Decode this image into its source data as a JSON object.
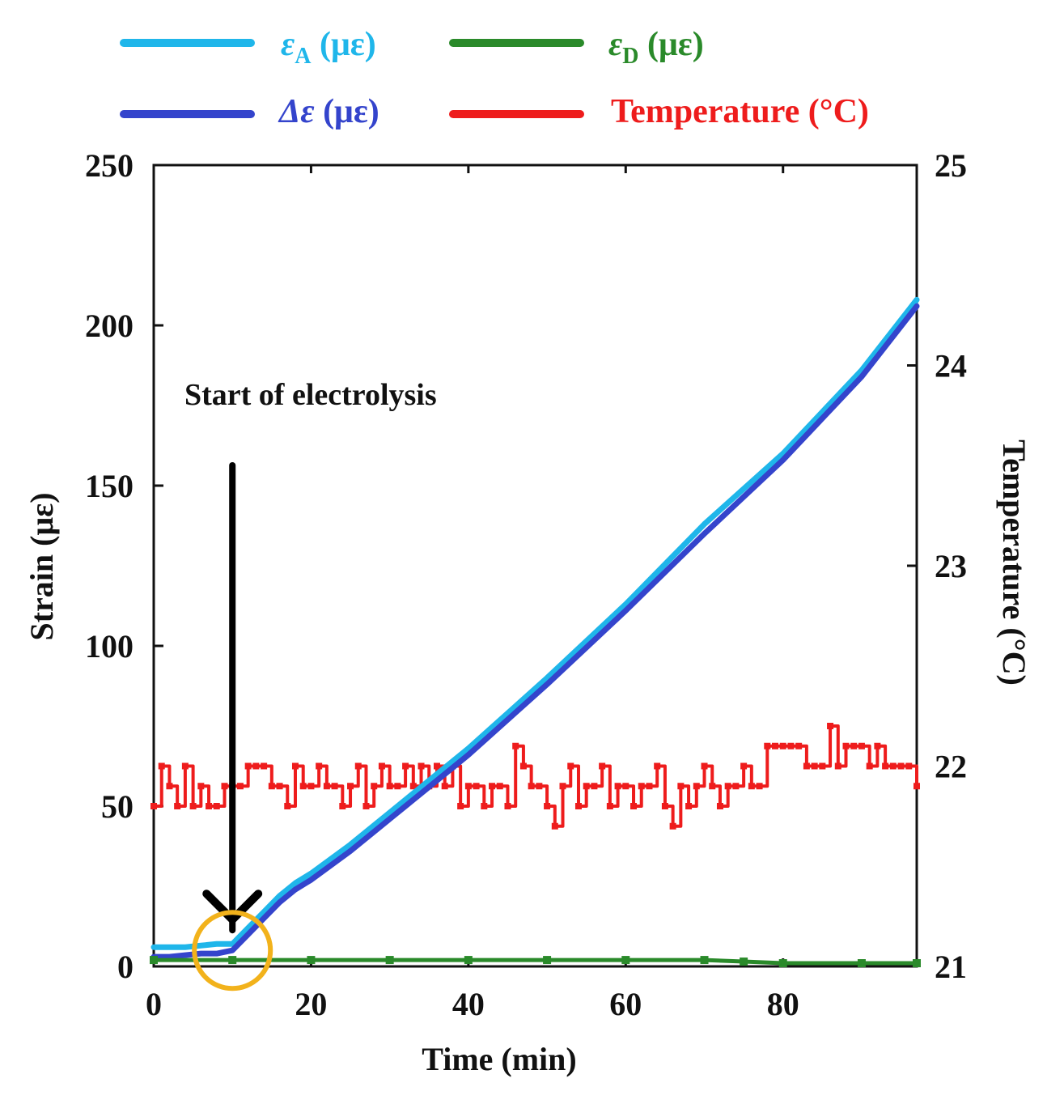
{
  "chart_data": {
    "type": "line",
    "xlabel": "Time (min)",
    "ylabel": "Strain (με)",
    "y2label": "Temperature (°C)",
    "xlim": [
      0,
      97
    ],
    "ylim": [
      0,
      250
    ],
    "y2lim": [
      21,
      25
    ],
    "x_ticks": [
      "0",
      "20",
      "40",
      "60",
      "80"
    ],
    "x_tick_values": [
      0,
      20,
      40,
      60,
      80
    ],
    "y_ticks": [
      "0",
      "50",
      "100",
      "150",
      "200",
      "250"
    ],
    "y_tick_values": [
      0,
      50,
      100,
      150,
      200,
      250
    ],
    "y2_ticks": [
      "21",
      "22",
      "23",
      "24",
      "25"
    ],
    "y2_tick_values": [
      21,
      22,
      23,
      24,
      25
    ],
    "legend_position": "top",
    "legend": [
      {
        "key": "epsA",
        "symbol": "ε",
        "sub": "A",
        "unit": " (με)",
        "color": "#1fb6ea"
      },
      {
        "key": "epsD",
        "symbol": "ε",
        "sub": "D",
        "unit": " (με)",
        "color": "#2a8a2a"
      },
      {
        "key": "deps",
        "symbol": "Δε",
        "sub": "",
        "unit": " (με)",
        "color": "#3444cc"
      },
      {
        "key": "temp",
        "symbol": "Temperature",
        "sub": "",
        "unit": " (°C)",
        "color": "#ee1c1c"
      }
    ],
    "annotation": {
      "text": "Start of electrolysis",
      "x": 10,
      "circle_center_y": 5
    },
    "series": [
      {
        "name": "εA (με)",
        "color": "#1fb6ea",
        "axis": "left",
        "x": [
          0,
          2,
          4,
          6,
          8,
          10,
          12,
          14,
          16,
          18,
          20,
          25,
          30,
          35,
          40,
          50,
          60,
          70,
          80,
          90,
          97
        ],
        "y": [
          6,
          6,
          6,
          6.5,
          7,
          7,
          12,
          17,
          22,
          26,
          29,
          38,
          48,
          58,
          68,
          90,
          113,
          138,
          160,
          186,
          208
        ]
      },
      {
        "name": "Δε (με)",
        "color": "#3444cc",
        "axis": "left",
        "x": [
          0,
          2,
          4,
          6,
          8,
          10,
          12,
          14,
          16,
          18,
          20,
          25,
          30,
          35,
          40,
          50,
          60,
          70,
          80,
          90,
          97
        ],
        "y": [
          3,
          3,
          3.5,
          4,
          4,
          5,
          10,
          15,
          20,
          24,
          27,
          36,
          46,
          56,
          66,
          88,
          111,
          135,
          158,
          184,
          206
        ]
      },
      {
        "name": "εD (με)",
        "color": "#2a8a2a",
        "axis": "left",
        "x": [
          0,
          10,
          20,
          30,
          40,
          50,
          60,
          70,
          75,
          80,
          90,
          97
        ],
        "y": [
          2,
          2,
          2,
          2,
          2,
          2,
          2,
          2,
          1.5,
          1,
          1,
          1
        ]
      },
      {
        "name": "Temperature (°C)",
        "color": "#ee1c1c",
        "axis": "right",
        "x": [
          0,
          1,
          2,
          3,
          4,
          5,
          6,
          7,
          8,
          9,
          10,
          11,
          12,
          13,
          14,
          15,
          16,
          17,
          18,
          19,
          20,
          21,
          22,
          23,
          24,
          25,
          26,
          27,
          28,
          29,
          30,
          31,
          32,
          33,
          34,
          35,
          36,
          37,
          38,
          39,
          40,
          41,
          42,
          43,
          44,
          45,
          46,
          47,
          48,
          49,
          50,
          51,
          52,
          53,
          54,
          55,
          56,
          57,
          58,
          59,
          60,
          61,
          62,
          63,
          64,
          65,
          66,
          67,
          68,
          69,
          70,
          71,
          72,
          73,
          74,
          75,
          76,
          77,
          78,
          79,
          80,
          81,
          82,
          83,
          84,
          85,
          86,
          87,
          88,
          89,
          90,
          91,
          92,
          93,
          94,
          95,
          96,
          97
        ],
        "y": [
          21.8,
          22.0,
          21.9,
          21.8,
          22.0,
          21.8,
          21.9,
          21.8,
          21.8,
          21.9,
          21.9,
          21.9,
          22.0,
          22.0,
          22.0,
          21.9,
          21.9,
          21.8,
          22.0,
          21.9,
          21.9,
          22.0,
          21.9,
          21.9,
          21.8,
          21.9,
          22.0,
          21.8,
          21.9,
          22.0,
          21.9,
          21.9,
          22.0,
          21.9,
          22.0,
          21.9,
          22.0,
          21.9,
          22.0,
          21.8,
          21.9,
          21.9,
          21.8,
          21.9,
          21.9,
          21.8,
          22.1,
          22.0,
          21.9,
          21.9,
          21.8,
          21.7,
          21.9,
          22.0,
          21.8,
          21.9,
          21.9,
          22.0,
          21.8,
          21.9,
          21.9,
          21.8,
          21.9,
          21.9,
          22.0,
          21.8,
          21.7,
          21.9,
          21.8,
          21.9,
          22.0,
          21.9,
          21.8,
          21.9,
          21.9,
          22.0,
          21.9,
          21.9,
          22.1,
          22.1,
          22.1,
          22.1,
          22.1,
          22.0,
          22.0,
          22.0,
          22.2,
          22.0,
          22.1,
          22.1,
          22.1,
          22.0,
          22.1,
          22.0,
          22.0,
          22.0,
          22.0,
          21.9
        ]
      }
    ]
  }
}
